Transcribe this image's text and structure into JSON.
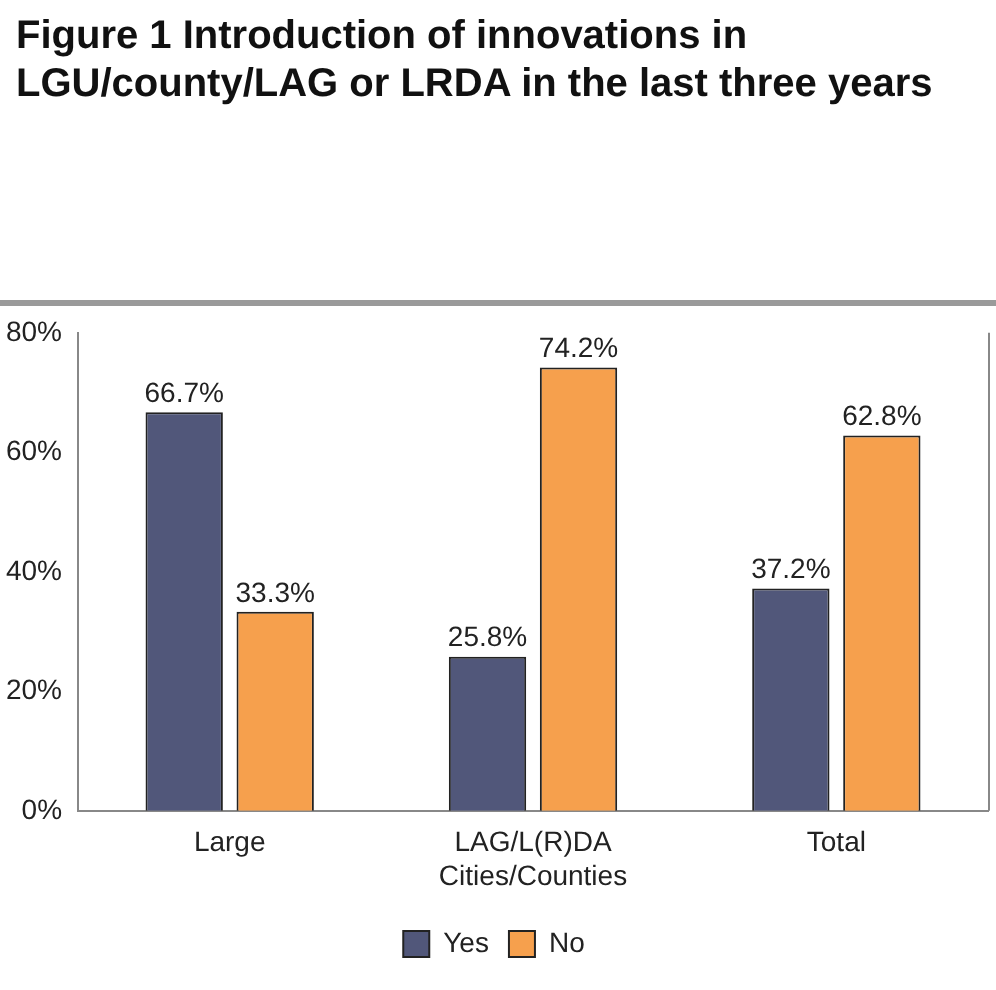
{
  "chart_data": {
    "type": "bar",
    "title": "Figure 1 Introduction of innovations in LGU/county/LAG or LRDA in the last three years",
    "categories": [
      "Large",
      "LAG/L(R)DA\nCities/Counties",
      "Total"
    ],
    "series": [
      {
        "name": "Yes",
        "color": "#51577a",
        "values": [
          66.7,
          25.8,
          37.2
        ],
        "value_labels": [
          "66.7%",
          "25.8%",
          "37.2%"
        ]
      },
      {
        "name": "No",
        "color": "#f6a04d",
        "values": [
          33.3,
          74.2,
          62.8
        ],
        "value_labels": [
          "33.3%",
          "74.2%",
          "62.8%"
        ]
      }
    ],
    "ylim": [
      0,
      80
    ],
    "yticks": [
      {
        "value": 0,
        "label": "0%"
      },
      {
        "value": 20,
        "label": "20%"
      },
      {
        "value": 40,
        "label": "40%"
      },
      {
        "value": 60,
        "label": "60%"
      },
      {
        "value": 80,
        "label": "80%"
      }
    ],
    "grid": false,
    "legend": "bottom"
  }
}
